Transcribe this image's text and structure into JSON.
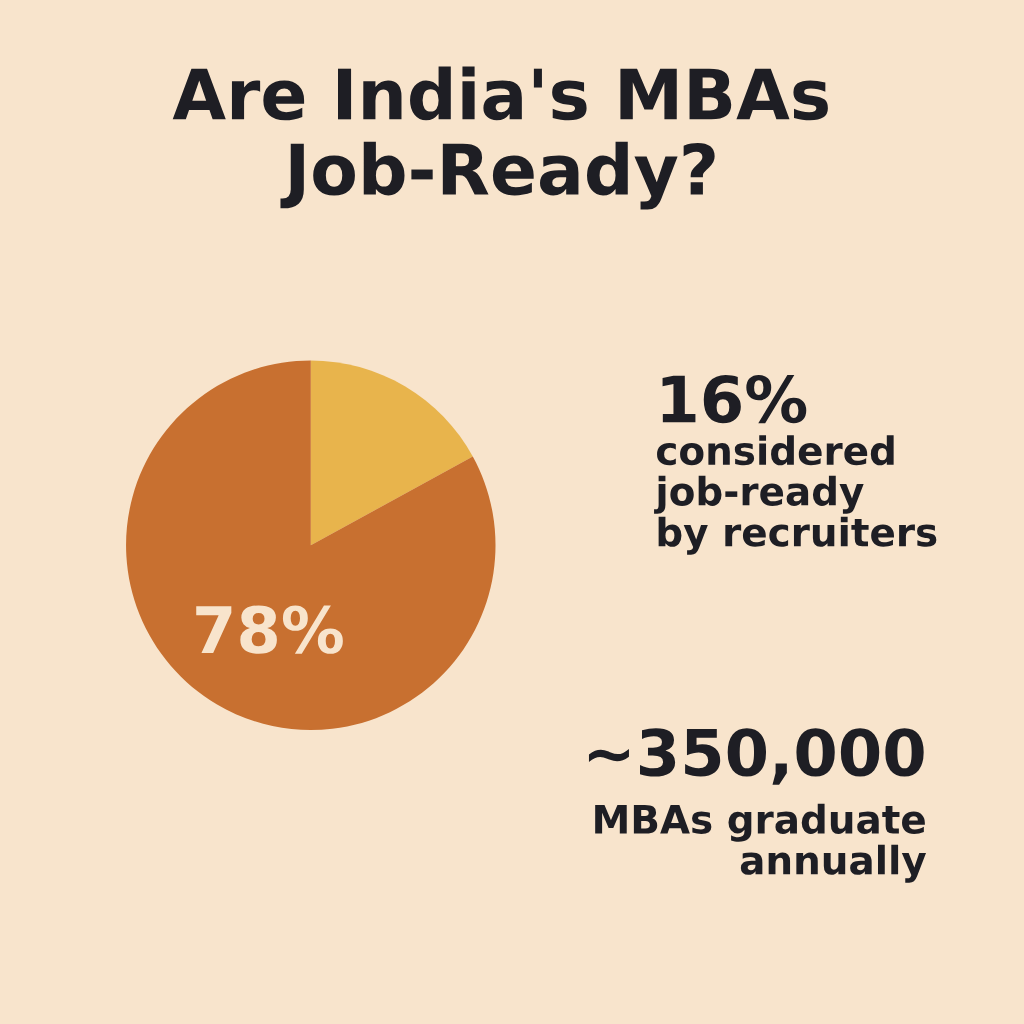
{
  "chart_data": {
    "type": "pie",
    "title": "Are India's MBAs\nJob-Ready?",
    "categories": [
      null,
      null
    ],
    "values": [
      16,
      78
    ],
    "colors": [
      "#e8b44c",
      "#c87030"
    ],
    "value_labels": [
      null,
      "78%"
    ],
    "annotations": [
      "16%",
      "considered\njob-ready\nby recruiters",
      "~350,000",
      "MBAs graduate\nannually"
    ]
  }
}
